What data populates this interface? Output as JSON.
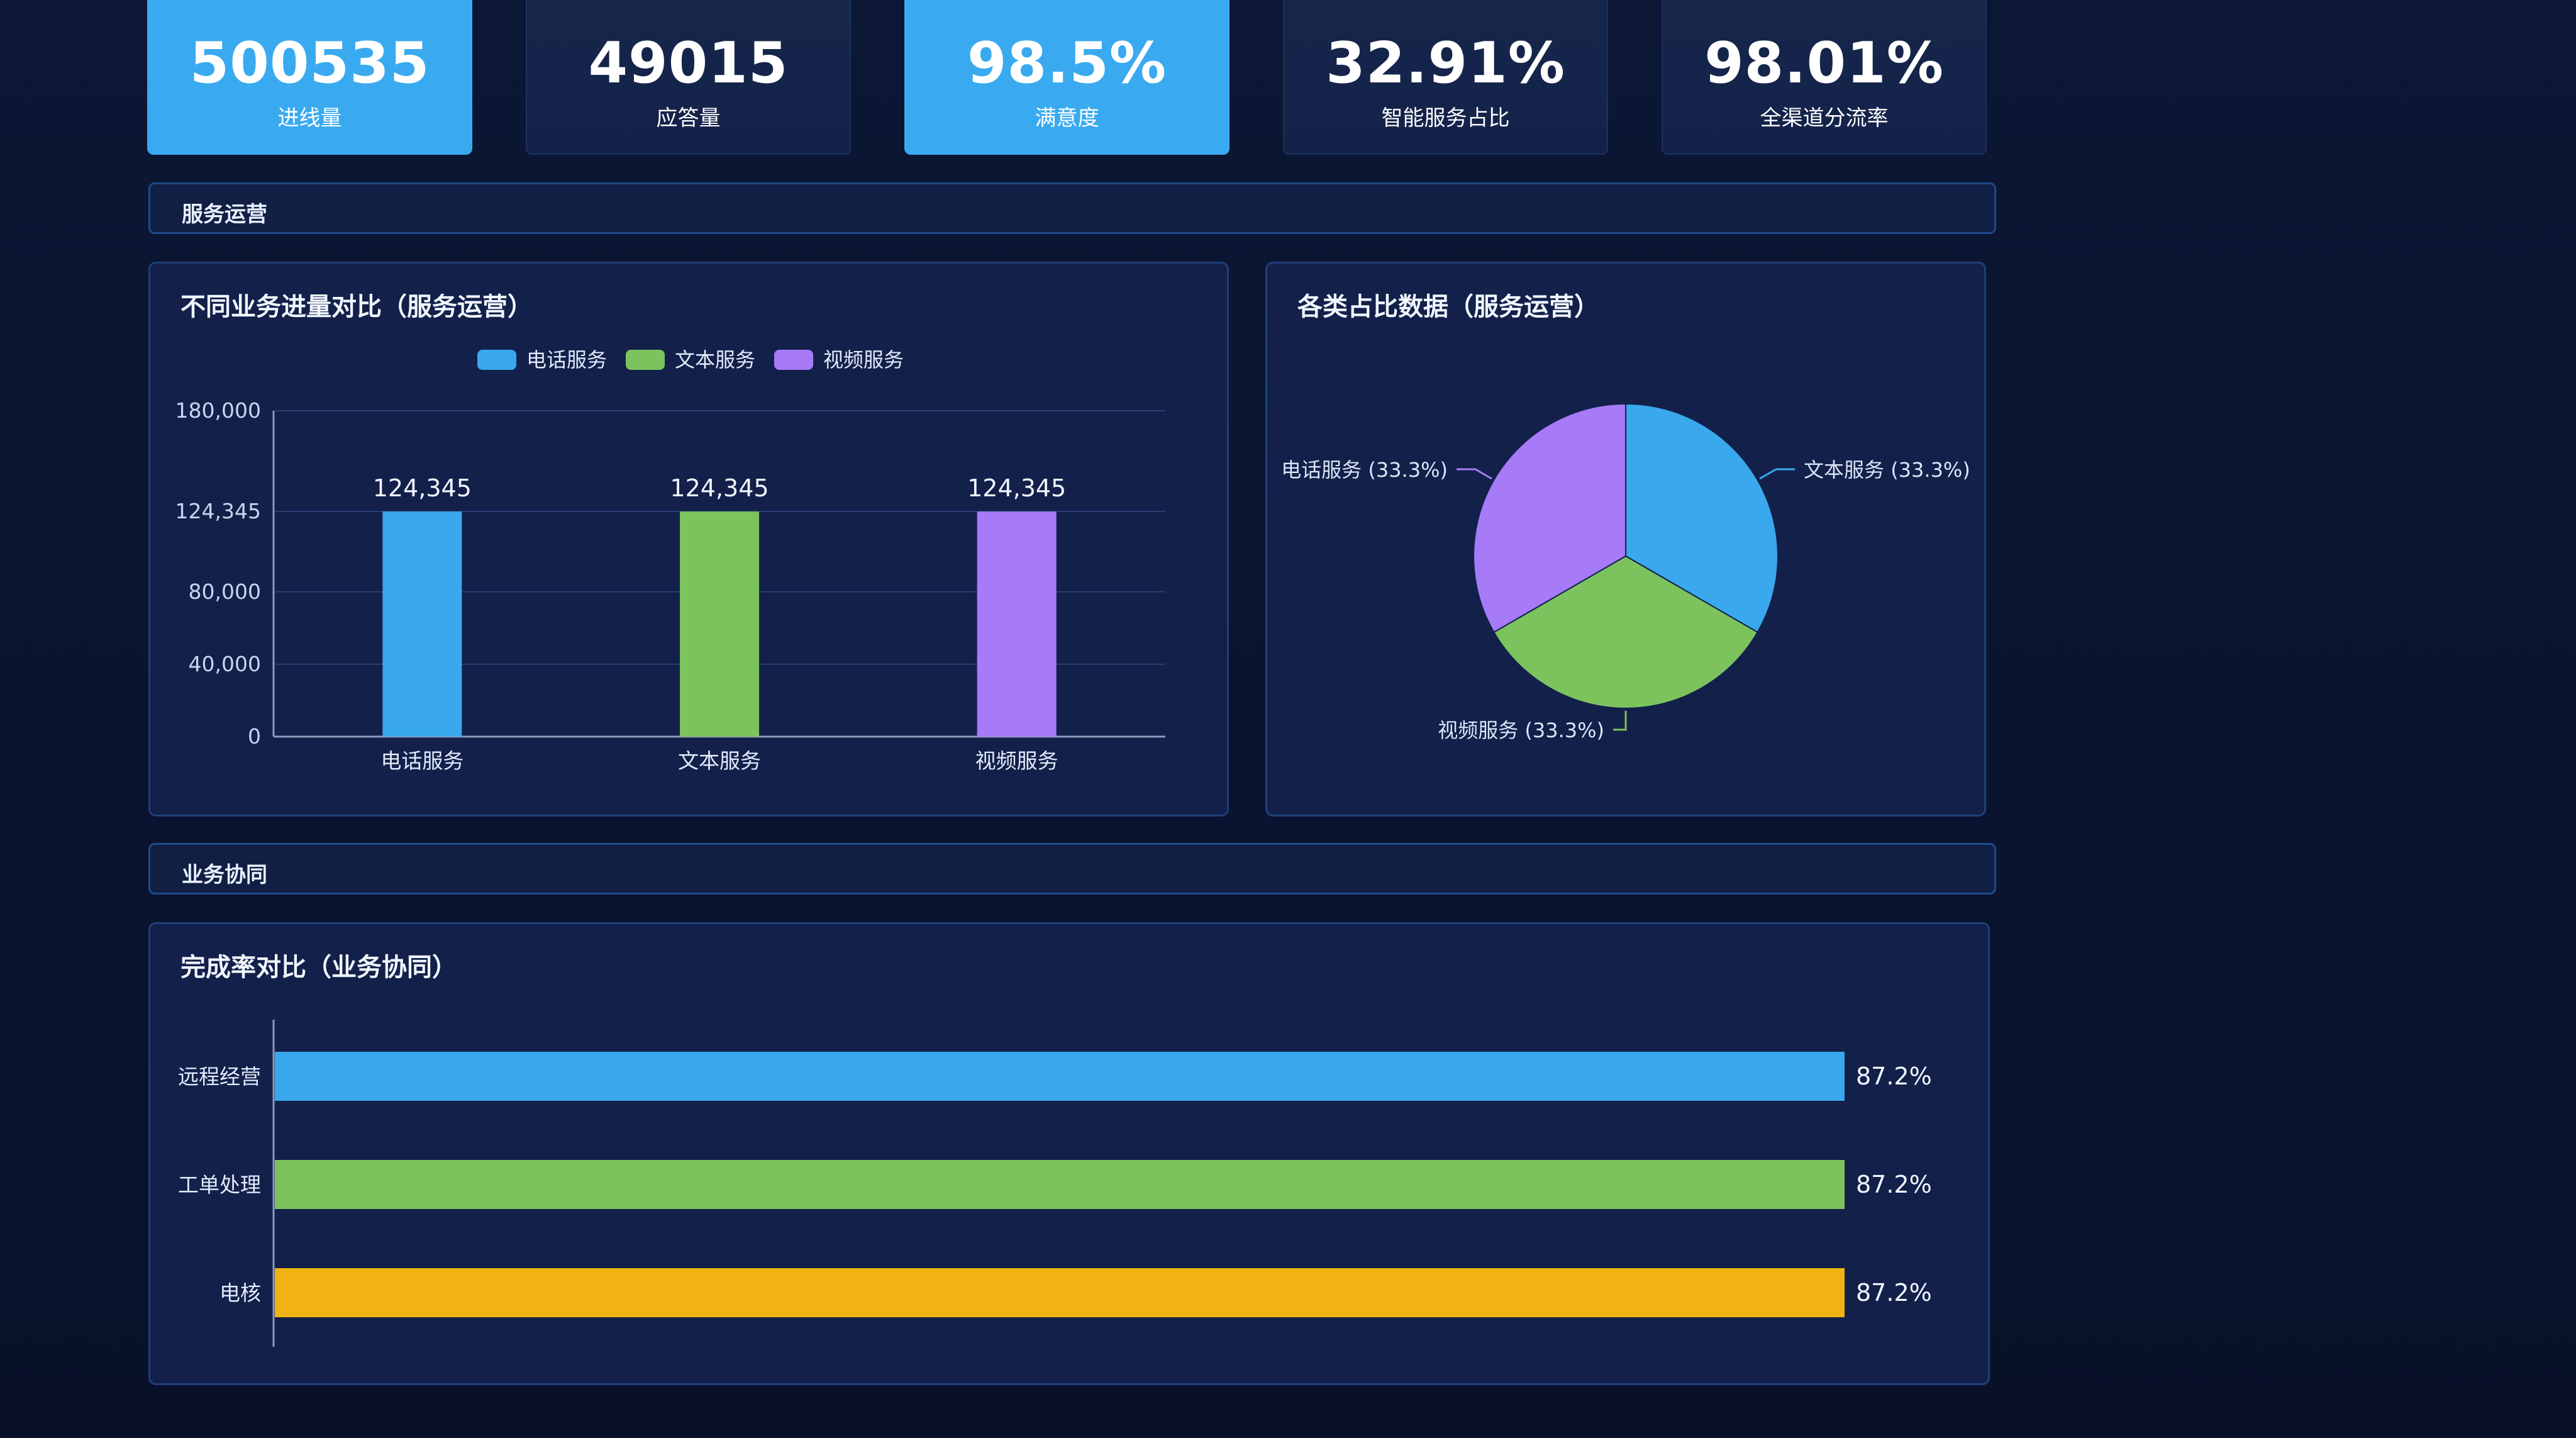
{
  "kpis": [
    {
      "value": "500535",
      "label": "进线量",
      "style": "bright"
    },
    {
      "value": "49015",
      "label": "应答量",
      "style": "dark"
    },
    {
      "value": "98.5%",
      "label": "满意度",
      "style": "bright"
    },
    {
      "value": "32.91%",
      "label": "智能服务占比",
      "style": "dark"
    },
    {
      "value": "98.01%",
      "label": "全渠道分流率",
      "style": "dark"
    }
  ],
  "sections": {
    "service_ops": "服务运营",
    "biz_collab": "业务协同"
  },
  "bar_panel": {
    "title": "不同业务进量对比（服务运营）"
  },
  "pie_panel": {
    "title": "各类占比数据（服务运营）"
  },
  "hbar_panel": {
    "title": "完成率对比（业务协同）"
  },
  "colors": {
    "blue": "#3aa8ec",
    "green": "#7cc35e",
    "purple": "#a77af7",
    "orange": "#f1b212"
  },
  "chart_data": [
    {
      "type": "bar",
      "title": "不同业务进量对比（服务运营）",
      "categories": [
        "电话服务",
        "文本服务",
        "视频服务"
      ],
      "legend": [
        "电话服务",
        "文本服务",
        "视频服务"
      ],
      "legend_position": "top-center",
      "values": [
        124345,
        124345,
        124345
      ],
      "data_labels": [
        "124,345",
        "124,345",
        "124,345"
      ],
      "yticks": [
        0,
        40000,
        80000,
        124345,
        180000
      ],
      "ytick_labels": [
        "0",
        "40,000",
        "80,000",
        "124,345",
        "180,000"
      ],
      "ylim": [
        0,
        180000
      ],
      "grid": true
    },
    {
      "type": "pie",
      "title": "各类占比数据（服务运营）",
      "slices": [
        {
          "name": "文本服务",
          "value": 33.3,
          "label": "文本服务 (33.3%)",
          "color": "#3aa8ec"
        },
        {
          "name": "视频服务",
          "value": 33.3,
          "label": "视频服务 (33.3%)",
          "color": "#7cc35e"
        },
        {
          "name": "电话服务",
          "value": 33.3,
          "label": "电话服务 (33.3%)",
          "color": "#a77af7"
        }
      ]
    },
    {
      "type": "bar",
      "orientation": "horizontal",
      "title": "完成率对比（业务协同）",
      "categories": [
        "远程经营",
        "工单处理",
        "电核"
      ],
      "values": [
        87.2,
        87.2,
        87.2
      ],
      "data_labels": [
        "87.2%",
        "87.2%",
        "87.2%"
      ],
      "xlim": [
        0,
        100
      ],
      "grid": false
    }
  ]
}
